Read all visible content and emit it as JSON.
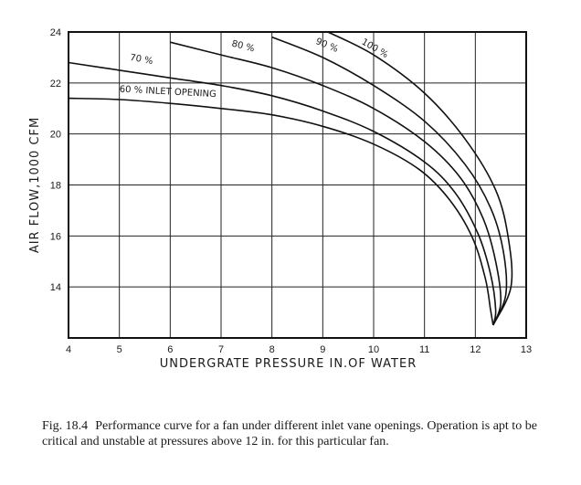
{
  "chart_data": {
    "type": "line",
    "xlabel": "UNDERGRATE PRESSURE IN.OF WATER",
    "ylabel": "AIR FLOW,1000 CFM",
    "xlim": [
      4,
      13
    ],
    "ylim": [
      12,
      24
    ],
    "x_ticks": [
      "4",
      "5",
      "6",
      "7",
      "8",
      "9",
      "10",
      "11",
      "12",
      "13"
    ],
    "y_ticks": [
      "14",
      "16",
      "18",
      "20",
      "22",
      "24"
    ],
    "grid": true,
    "series": [
      {
        "name": "60 % INLET OPENING",
        "points": [
          [
            4.0,
            21.4
          ],
          [
            5.0,
            21.35
          ],
          [
            6.0,
            21.2
          ],
          [
            7.0,
            21.0
          ],
          [
            8.0,
            20.75
          ],
          [
            9.0,
            20.3
          ],
          [
            10.0,
            19.6
          ],
          [
            10.9,
            18.6
          ],
          [
            11.5,
            17.4
          ],
          [
            11.95,
            15.9
          ],
          [
            12.2,
            14.3
          ],
          [
            12.3,
            13.1
          ],
          [
            12.35,
            12.5
          ]
        ]
      },
      {
        "name": "70 %",
        "points": [
          [
            4.0,
            22.8
          ],
          [
            5.0,
            22.5
          ],
          [
            6.0,
            22.2
          ],
          [
            7.0,
            21.9
          ],
          [
            8.0,
            21.5
          ],
          [
            9.0,
            20.9
          ],
          [
            10.0,
            20.1
          ],
          [
            11.0,
            18.9
          ],
          [
            11.6,
            17.7
          ],
          [
            12.05,
            16.1
          ],
          [
            12.3,
            14.5
          ],
          [
            12.4,
            13.1
          ],
          [
            12.35,
            12.5
          ]
        ]
      },
      {
        "name": "80 %",
        "points": [
          [
            6.0,
            23.6
          ],
          [
            7.0,
            23.1
          ],
          [
            8.0,
            22.6
          ],
          [
            9.0,
            21.9
          ],
          [
            10.0,
            21.0
          ],
          [
            11.0,
            19.7
          ],
          [
            11.7,
            18.3
          ],
          [
            12.15,
            16.7
          ],
          [
            12.4,
            15.0
          ],
          [
            12.5,
            13.4
          ],
          [
            12.35,
            12.5
          ]
        ]
      },
      {
        "name": "90 %",
        "points": [
          [
            8.0,
            23.8
          ],
          [
            9.0,
            23.0
          ],
          [
            10.0,
            21.9
          ],
          [
            11.0,
            20.5
          ],
          [
            11.8,
            18.8
          ],
          [
            12.3,
            17.1
          ],
          [
            12.55,
            15.4
          ],
          [
            12.6,
            13.7
          ],
          [
            12.35,
            12.5
          ]
        ]
      },
      {
        "name": "100 %",
        "points": [
          [
            9.1,
            24.0
          ],
          [
            10.0,
            23.1
          ],
          [
            11.0,
            21.6
          ],
          [
            11.8,
            19.8
          ],
          [
            12.4,
            17.8
          ],
          [
            12.65,
            15.9
          ],
          [
            12.7,
            14.0
          ],
          [
            12.35,
            12.5
          ]
        ]
      }
    ]
  },
  "caption": {
    "fig_number": "Fig. 18.4",
    "text": "Performance curve for a fan under different inlet vane openings. Operation is apt to be critical and unstable at pressures above 12 in. for this particular fan."
  }
}
